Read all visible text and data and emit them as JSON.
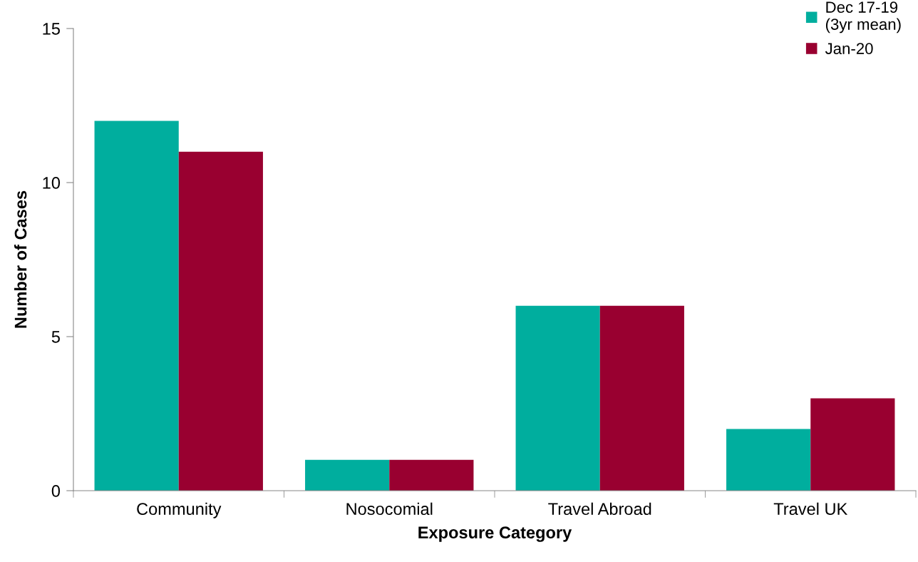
{
  "chart_data": {
    "type": "bar",
    "xlabel": "Exposure Category",
    "ylabel": "Number of Cases",
    "categories": [
      "Community",
      "Nosocomial",
      "Travel Abroad",
      "Travel UK"
    ],
    "series": [
      {
        "name": "Dec 17-19\n(3yr mean)",
        "color": "#00ae9e",
        "values": [
          12,
          1,
          6,
          2
        ]
      },
      {
        "name": "Jan-20",
        "color": "#990030",
        "values": [
          11,
          1,
          6,
          3
        ]
      }
    ],
    "ylim": [
      0,
      15
    ],
    "yticks": [
      0,
      5,
      10,
      15
    ],
    "grid": false,
    "legend": "top right"
  }
}
